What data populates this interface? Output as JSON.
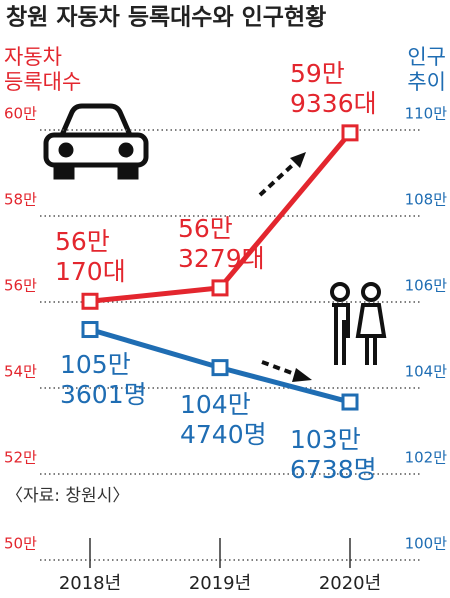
{
  "chart_data": {
    "type": "line",
    "title": "창원 자동차 등록대수와 인구현황",
    "ylabel": [
      "자동차",
      "등록대수"
    ],
    "y2label": [
      "인구",
      "추이"
    ],
    "source": "〈자료: 창원시〉",
    "categories": [
      "2018년",
      "2019년",
      "2020년"
    ],
    "series": [
      {
        "name": "자동차 등록대수",
        "color": "#e3262e",
        "values": [
          560170,
          563279,
          599336
        ],
        "value_labels": [
          "56만\n170대",
          "56만\n3279대",
          "59만\n9336대"
        ]
      },
      {
        "name": "인구",
        "color": "#1f6db3",
        "axis": "y2",
        "values": [
          1053601,
          1044740,
          1036738
        ],
        "value_labels": [
          "105만\n3601명",
          "104만\n4740명",
          "103만\n6738명"
        ]
      }
    ],
    "ylim": [
      500000,
      600000
    ],
    "yticks": [
      {
        "value": 500000,
        "label": "50만"
      },
      {
        "value": 520000,
        "label": "52만"
      },
      {
        "value": 540000,
        "label": "54만"
      },
      {
        "value": 560000,
        "label": "56만"
      },
      {
        "value": 580000,
        "label": "58만"
      },
      {
        "value": 600000,
        "label": "60만"
      }
    ],
    "y2lim": [
      1000000,
      1100000
    ],
    "y2ticks": [
      {
        "value": 1000000,
        "label": "100만"
      },
      {
        "value": 1020000,
        "label": "102만"
      },
      {
        "value": 1040000,
        "label": "104만"
      },
      {
        "value": 1060000,
        "label": "106만"
      },
      {
        "value": 1080000,
        "label": "108만"
      },
      {
        "value": 1100000,
        "label": "110만"
      }
    ],
    "grid": true
  }
}
